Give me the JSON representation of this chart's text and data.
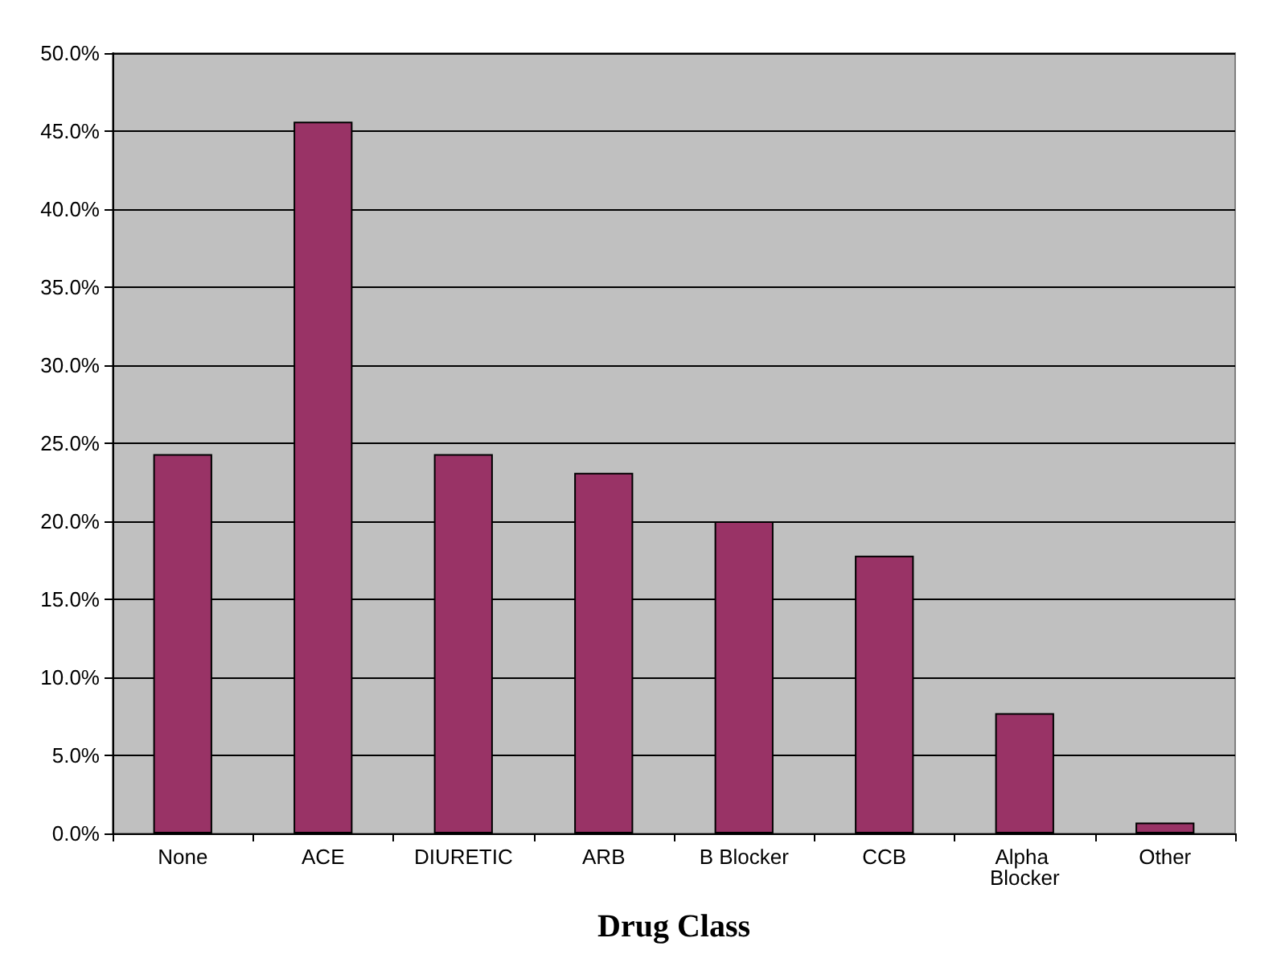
{
  "chart_data": {
    "type": "bar",
    "xlabel": "Drug Class",
    "categories": [
      "None",
      "ACE",
      "DIURETIC",
      "ARB",
      "B Blocker",
      "CCB",
      "Alpha Blocker",
      "Other"
    ],
    "values": [
      24.3,
      45.6,
      24.3,
      23.1,
      20.0,
      17.8,
      7.7,
      0.7
    ],
    "color": "#993366",
    "ylim": [
      0,
      50
    ],
    "yticks": [
      {
        "value": 0,
        "label": "0.0%"
      },
      {
        "value": 5,
        "label": "5.0%"
      },
      {
        "value": 10,
        "label": "10.0%"
      },
      {
        "value": 15,
        "label": "15.0%"
      },
      {
        "value": 20,
        "label": "20.0%"
      },
      {
        "value": 25,
        "label": "25.0%"
      },
      {
        "value": 30,
        "label": "30.0%"
      },
      {
        "value": 35,
        "label": "35.0%"
      },
      {
        "value": 40,
        "label": "40.0%"
      },
      {
        "value": 45,
        "label": "45.0%"
      },
      {
        "value": 50,
        "label": "50.0%"
      }
    ],
    "grid": "y"
  }
}
